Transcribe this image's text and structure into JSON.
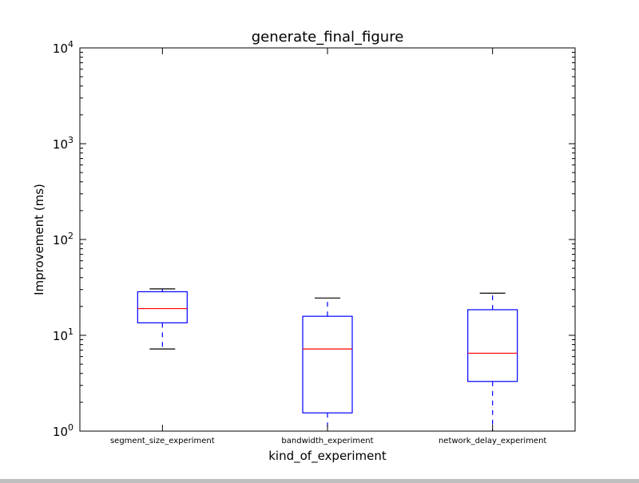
{
  "chart_data": {
    "type": "box",
    "title": "generate_final_figure",
    "xlabel": "kind_of_experiment",
    "ylabel": "Improvement (ms)",
    "yscale": "log",
    "ylim": [
      1,
      10000
    ],
    "yticks": [
      {
        "base": "10",
        "exp": "0",
        "value": 1
      },
      {
        "base": "10",
        "exp": "1",
        "value": 10
      },
      {
        "base": "10",
        "exp": "2",
        "value": 100
      },
      {
        "base": "10",
        "exp": "3",
        "value": 1000
      },
      {
        "base": "10",
        "exp": "4",
        "value": 10000
      }
    ],
    "categories": [
      "segment_size_experiment",
      "bandwidth_experiment",
      "network_delay_experiment"
    ],
    "boxes": [
      {
        "whisker_low": 7.2,
        "q1": 13.5,
        "median": 19.0,
        "q3": 28.5,
        "whisker_high": 30.5
      },
      {
        "whisker_low": 1.0,
        "q1": 1.55,
        "median": 7.2,
        "q3": 15.8,
        "whisker_high": 24.5
      },
      {
        "whisker_low": 1.0,
        "q1": 3.3,
        "median": 6.5,
        "q3": 18.5,
        "whisker_high": 27.5
      }
    ],
    "colors": {
      "box": "#0000ff",
      "median": "#ff0000",
      "whisker": "#0000ff",
      "cap": "#000000"
    },
    "grid": false
  }
}
